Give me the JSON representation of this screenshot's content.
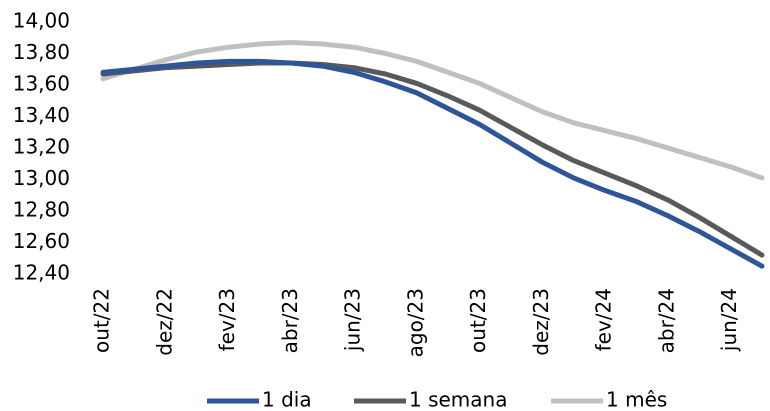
{
  "chart_data": {
    "type": "line",
    "categories": [
      "out/22",
      null,
      "dez/22",
      null,
      "fev/23",
      null,
      "abr/23",
      null,
      "jun/23",
      null,
      "ago/23",
      null,
      "out/23",
      null,
      "dez/23",
      null,
      "fev/24",
      null,
      "abr/24",
      null,
      "jun/24",
      null
    ],
    "series": [
      {
        "name": "1 dia",
        "color": "#2e5597",
        "values": [
          13.68,
          13.7,
          13.72,
          13.74,
          13.75,
          13.75,
          13.74,
          13.72,
          13.68,
          13.62,
          13.55,
          13.45,
          13.35,
          13.23,
          13.11,
          13.01,
          12.93,
          12.86,
          12.77,
          12.67,
          12.56,
          12.45
        ]
      },
      {
        "name": "1 semana",
        "color": "#595959",
        "values": [
          13.67,
          13.69,
          13.71,
          13.72,
          13.73,
          13.74,
          13.74,
          13.73,
          13.71,
          13.67,
          13.61,
          13.53,
          13.44,
          13.33,
          13.22,
          13.12,
          13.04,
          12.96,
          12.87,
          12.76,
          12.64,
          12.52
        ]
      },
      {
        "name": "1 mês",
        "color": "#c0c0c0",
        "values": [
          13.64,
          13.7,
          13.76,
          13.81,
          13.84,
          13.86,
          13.87,
          13.86,
          13.84,
          13.8,
          13.75,
          13.68,
          13.61,
          13.52,
          13.43,
          13.36,
          13.31,
          13.26,
          13.2,
          13.14,
          13.08,
          13.01
        ]
      }
    ],
    "ylim": [
      12.4,
      14.0
    ],
    "yticks": [
      {
        "value": 12.4,
        "label": "12,40"
      },
      {
        "value": 12.6,
        "label": "12,60"
      },
      {
        "value": 12.8,
        "label": "12,80"
      },
      {
        "value": 13.0,
        "label": "13,00"
      },
      {
        "value": 13.2,
        "label": "13,20"
      },
      {
        "value": 13.4,
        "label": "13,40"
      },
      {
        "value": 13.6,
        "label": "13,60"
      },
      {
        "value": 13.8,
        "label": "13,80"
      },
      {
        "value": 14.0,
        "label": "14,00"
      }
    ],
    "grid": false,
    "legend": "bottom"
  }
}
